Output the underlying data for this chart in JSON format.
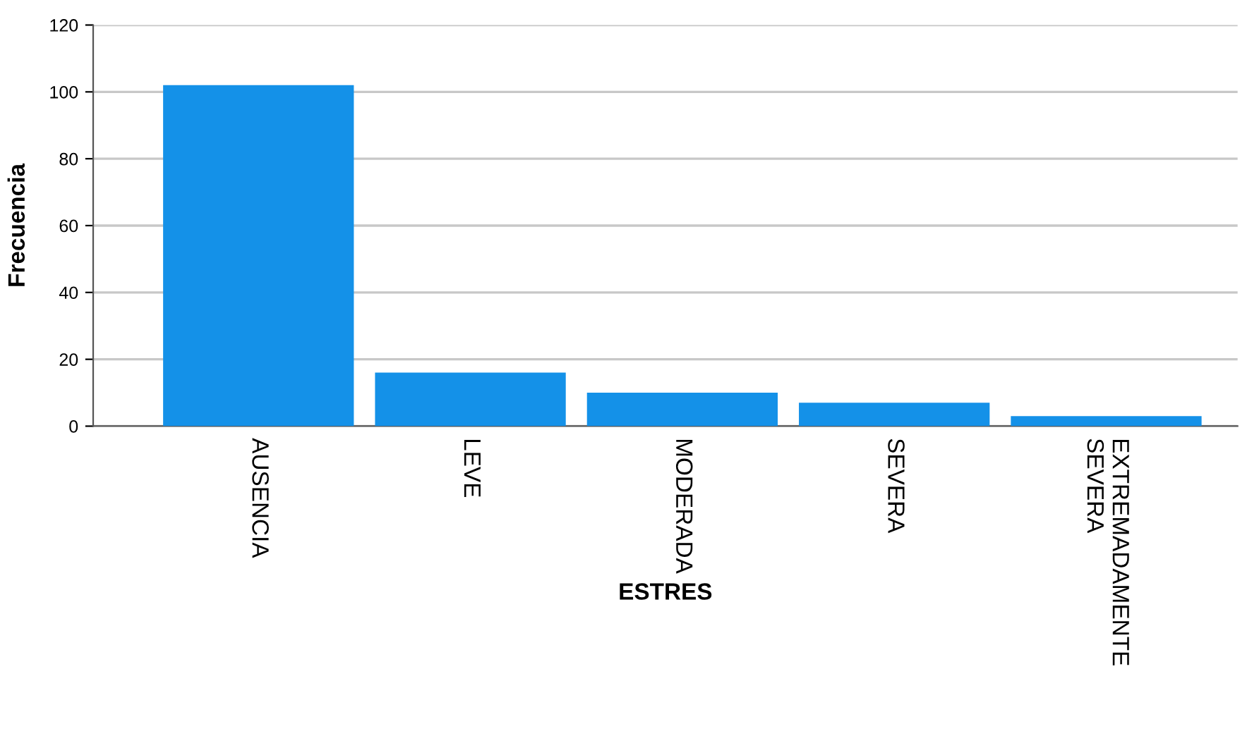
{
  "chart_data": {
    "type": "bar",
    "xlabel": "ESTRES",
    "ylabel": "Frecuencia",
    "categories": [
      "AUSENCIA",
      "LEVE",
      "MODERADA",
      "SEVERA",
      "EXTREMADAMENTE\nSEVERA"
    ],
    "values": [
      102,
      16,
      10,
      7,
      3
    ],
    "color": "#1491e8",
    "ylim": [
      0,
      120
    ],
    "yticks": [
      0,
      20,
      40,
      60,
      80,
      100,
      120
    ],
    "grid": "y",
    "legend": false
  }
}
